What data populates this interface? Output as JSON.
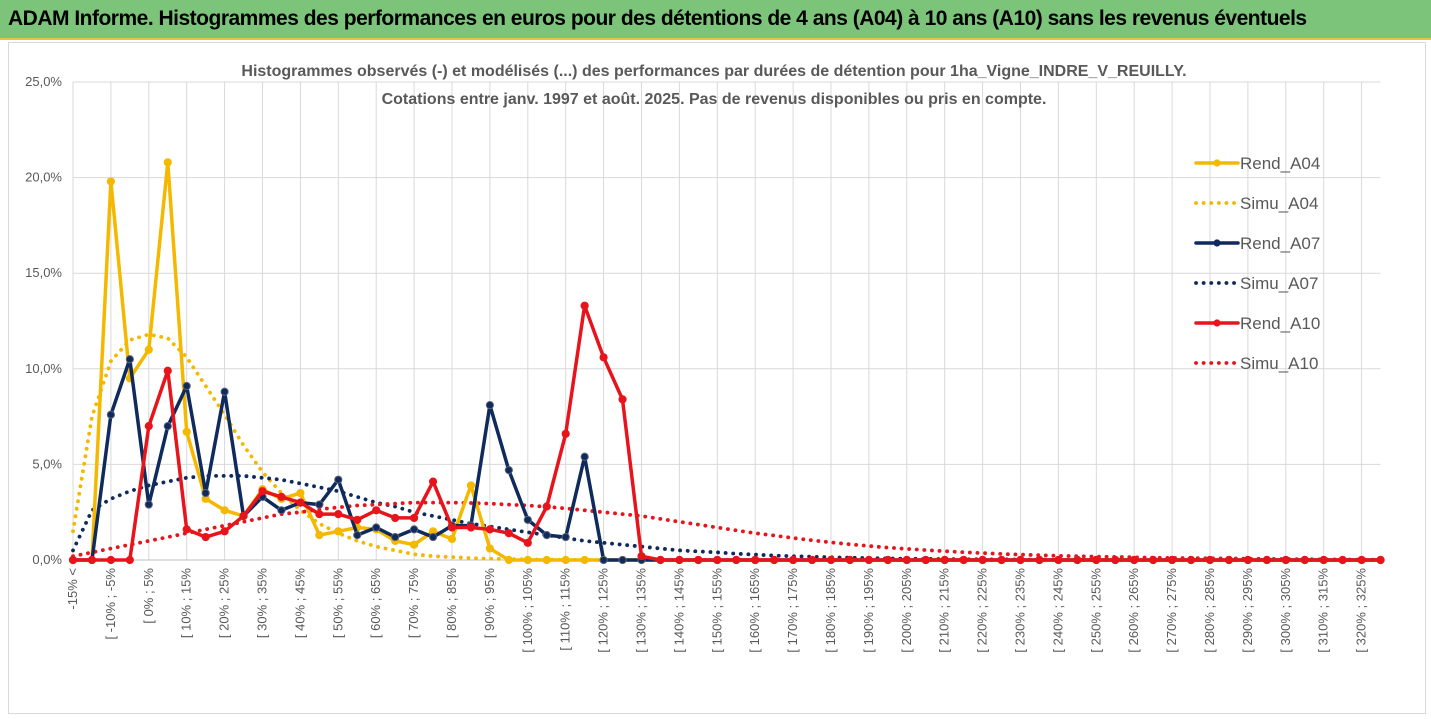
{
  "banner": {
    "title": "ADAM Informe. Histogrammes des performances en euros pour des détentions de 4 ans (A04) à 10 ans (A10) sans les revenus éventuels",
    "background": "#7cc47a"
  },
  "chart_data": {
    "type": "line",
    "title_line1": "Histogrammes observés (-) et modélisés (...) des performances par durées de détention pour 1ha_Vigne_INDRE_V_REUILLY.",
    "title_line2": "Cotations entre janv. 1997 et août. 2025. Pas de revenus disponibles ou pris en compte.",
    "ylim": [
      0,
      25
    ],
    "y_ticks": [
      "0,0%",
      "5,0%",
      "10,0%",
      "15,0%",
      "20,0%",
      "25,0%"
    ],
    "x_tick_labels": [
      "-15% <",
      "[ -10% ; -5%",
      "[ 0% ; 5%",
      "[ 10% ; 15%",
      "[ 20% ; 25%",
      "[ 30% ; 35%",
      "[ 40% ; 45%",
      "[ 50% ; 55%",
      "[ 60% ; 65%",
      "[ 70% ; 75%",
      "[ 80% ; 85%",
      "[ 90% ; 95%",
      "[ 100% ; 105%",
      "[ 110% ; 115%",
      "[ 120% ; 125%",
      "[ 130% ; 135%",
      "[ 140% ; 145%",
      "[ 150% ; 155%",
      "[ 160% ; 165%",
      "[ 170% ; 175%",
      "[ 180% ; 185%",
      "[ 190% ; 195%",
      "[ 200% ; 205%",
      "[ 210% ; 215%",
      "[ 220% ; 225%",
      "[ 230% ; 235%",
      "[ 240% ; 245%",
      "[ 250% ; 255%",
      "[ 260% ; 265%",
      "[ 270% ; 275%",
      "[ 280% ; 285%",
      "[ 290% ; 295%",
      "[ 300% ; 305%",
      "[ 310% ; 315%",
      "[ 320% ; 325%"
    ],
    "num_bins": 70,
    "legend_position": "right",
    "grid": true,
    "series": [
      {
        "name": "Rend_A04",
        "style": "solid",
        "marker": true,
        "color": "#f5b800",
        "values": [
          0,
          0,
          19.8,
          9.5,
          11,
          20.8,
          6.7,
          3.2,
          2.6,
          2.3,
          3.7,
          3.2,
          3.5,
          1.3,
          1.5,
          1.7,
          1.6,
          1,
          0.8,
          1.5,
          1.1,
          3.9,
          0.6,
          0,
          0,
          0,
          0,
          0,
          0,
          0,
          0,
          0,
          0,
          0,
          0,
          0,
          0,
          0,
          0,
          0,
          0,
          0,
          0,
          0,
          0,
          0,
          0,
          0,
          0,
          0,
          0,
          0,
          0,
          0,
          0,
          0,
          0,
          0,
          0,
          0,
          0,
          0,
          0,
          0,
          0,
          0,
          0,
          0,
          0,
          0
        ]
      },
      {
        "name": "Simu_A04",
        "style": "dotted",
        "marker": false,
        "color": "#f5b800",
        "values": [
          1.5,
          7.5,
          10.4,
          11.5,
          11.8,
          11.6,
          10.6,
          9.1,
          7.6,
          6.0,
          4.6,
          3.5,
          2.6,
          1.9,
          1.4,
          1.0,
          0.7,
          0.5,
          0.3,
          0.2,
          0.15,
          0.1,
          0.07,
          0.05,
          0.03,
          0.02,
          0.01,
          0,
          0,
          0,
          0,
          0,
          0,
          0,
          0,
          0,
          0,
          0,
          0,
          0,
          0,
          0,
          0,
          0,
          0,
          0,
          0,
          0,
          0,
          0,
          0,
          0,
          0,
          0,
          0,
          0,
          0,
          0,
          0,
          0,
          0,
          0,
          0,
          0,
          0,
          0,
          0,
          0,
          0,
          0
        ]
      },
      {
        "name": "Rend_A07",
        "style": "solid",
        "marker": true,
        "color": "#0f2a5c",
        "values": [
          0,
          0,
          7.6,
          10.5,
          2.9,
          7.0,
          9.1,
          3.5,
          8.8,
          2.3,
          3.3,
          2.6,
          3.0,
          2.9,
          4.2,
          1.3,
          1.7,
          1.2,
          1.6,
          1.2,
          1.8,
          1.8,
          8.1,
          4.7,
          2.1,
          1.3,
          1.2,
          5.4,
          0,
          0,
          0,
          0,
          0,
          0,
          0,
          0,
          0,
          0,
          0,
          0,
          0,
          0,
          0,
          0,
          0,
          0,
          0,
          0,
          0,
          0,
          0,
          0,
          0,
          0,
          0,
          0,
          0,
          0,
          0,
          0,
          0,
          0,
          0,
          0,
          0,
          0,
          0,
          0,
          0,
          0
        ]
      },
      {
        "name": "Simu_A07",
        "style": "dotted",
        "marker": false,
        "color": "#0f2a5c",
        "values": [
          0.5,
          2.6,
          3.2,
          3.6,
          3.9,
          4.1,
          4.3,
          4.4,
          4.4,
          4.4,
          4.3,
          4.2,
          4.0,
          3.8,
          3.6,
          3.3,
          3.0,
          2.8,
          2.5,
          2.3,
          2.1,
          1.9,
          1.75,
          1.6,
          1.45,
          1.3,
          1.15,
          1.0,
          0.9,
          0.8,
          0.7,
          0.6,
          0.5,
          0.45,
          0.4,
          0.33,
          0.28,
          0.23,
          0.2,
          0.17,
          0.14,
          0.12,
          0.1,
          0.08,
          0.07,
          0.06,
          0.05,
          0.04,
          0.03,
          0.03,
          0.02,
          0.02,
          0.01,
          0.01,
          0.01,
          0,
          0,
          0,
          0,
          0,
          0,
          0,
          0,
          0,
          0,
          0,
          0,
          0,
          0,
          0
        ]
      },
      {
        "name": "Rend_A10",
        "style": "solid",
        "marker": true,
        "color": "#e8141c",
        "values": [
          0,
          0,
          0,
          0,
          7.0,
          9.9,
          1.6,
          1.2,
          1.5,
          2.3,
          3.6,
          3.3,
          3.0,
          2.4,
          2.4,
          2.1,
          2.6,
          2.2,
          2.2,
          4.1,
          1.7,
          1.7,
          1.6,
          1.4,
          0.9,
          2.8,
          6.6,
          13.3,
          10.6,
          8.4,
          0.2,
          0,
          0,
          0,
          0,
          0,
          0,
          0,
          0,
          0,
          0,
          0,
          0,
          0,
          0,
          0,
          0,
          0,
          0,
          0,
          0,
          0,
          0,
          0,
          0,
          0,
          0,
          0,
          0,
          0,
          0,
          0,
          0,
          0,
          0,
          0,
          0,
          0,
          0,
          0
        ]
      },
      {
        "name": "Simu_A10",
        "style": "dotted",
        "marker": false,
        "color": "#e8141c",
        "values": [
          0.2,
          0.4,
          0.6,
          0.8,
          1.0,
          1.2,
          1.4,
          1.6,
          1.8,
          2.0,
          2.2,
          2.4,
          2.5,
          2.65,
          2.75,
          2.85,
          2.9,
          2.95,
          3.0,
          3.0,
          3.0,
          2.98,
          2.95,
          2.9,
          2.85,
          2.78,
          2.7,
          2.6,
          2.5,
          2.4,
          2.3,
          2.15,
          2.0,
          1.85,
          1.7,
          1.55,
          1.4,
          1.28,
          1.15,
          1.03,
          0.92,
          0.82,
          0.73,
          0.65,
          0.58,
          0.52,
          0.46,
          0.41,
          0.36,
          0.32,
          0.28,
          0.25,
          0.22,
          0.2,
          0.18,
          0.16,
          0.14,
          0.12,
          0.11,
          0.1,
          0.09,
          0.08,
          0.07,
          0.06,
          0.05,
          0.04,
          0.03,
          0.03,
          0.02,
          0.02
        ]
      }
    ]
  }
}
